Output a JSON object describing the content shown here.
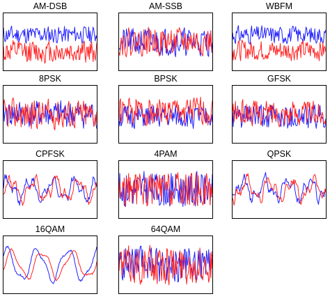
{
  "colors": {
    "in_phase": "#1f1fff",
    "quadrature": "#ff2020",
    "frame": "#000000"
  },
  "chart_data": [
    {
      "type": "line",
      "title": "AM-DSB",
      "x": [
        0,
        127
      ],
      "ylim": [
        -1,
        1
      ],
      "series": [
        {
          "style": "noisy",
          "amplitude": 0.35,
          "offset": 0.25,
          "color": "#1f1fff",
          "seed": 11
        },
        {
          "style": "noisy",
          "amplitude": 0.45,
          "offset": -0.35,
          "color": "#ff2020",
          "seed": 12
        }
      ]
    },
    {
      "type": "line",
      "title": "AM-SSB",
      "x": [
        0,
        127
      ],
      "ylim": [
        -1,
        1
      ],
      "series": [
        {
          "style": "noisy",
          "amplitude": 0.55,
          "offset": 0.0,
          "color": "#1f1fff",
          "seed": 21
        },
        {
          "style": "noisy",
          "amplitude": 0.55,
          "offset": 0.0,
          "color": "#ff2020",
          "seed": 22
        }
      ]
    },
    {
      "type": "line",
      "title": "WBFM",
      "x": [
        0,
        127
      ],
      "ylim": [
        -1,
        1
      ],
      "series": [
        {
          "style": "noisy",
          "amplitude": 0.35,
          "offset": 0.25,
          "color": "#1f1fff",
          "seed": 31
        },
        {
          "style": "noisy",
          "amplitude": 0.4,
          "offset": -0.3,
          "color": "#ff2020",
          "seed": 32
        }
      ]
    },
    {
      "type": "line",
      "title": "8PSK",
      "x": [
        0,
        127
      ],
      "ylim": [
        -1,
        1
      ],
      "series": [
        {
          "style": "noisy",
          "amplitude": 0.55,
          "offset": 0.0,
          "color": "#1f1fff",
          "seed": 41
        },
        {
          "style": "noisy",
          "amplitude": 0.6,
          "offset": 0.0,
          "color": "#ff2020",
          "seed": 42
        }
      ]
    },
    {
      "type": "line",
      "title": "BPSK",
      "x": [
        0,
        127
      ],
      "ylim": [
        -1,
        1
      ],
      "series": [
        {
          "style": "noisy",
          "amplitude": 0.45,
          "offset": -0.1,
          "color": "#1f1fff",
          "seed": 51
        },
        {
          "style": "noisy",
          "amplitude": 0.55,
          "offset": 0.1,
          "color": "#ff2020",
          "seed": 52
        }
      ]
    },
    {
      "type": "line",
      "title": "GFSK",
      "x": [
        0,
        127
      ],
      "ylim": [
        -1,
        1
      ],
      "series": [
        {
          "style": "noisy",
          "amplitude": 0.5,
          "offset": -0.1,
          "color": "#1f1fff",
          "seed": 61
        },
        {
          "style": "noisy",
          "amplitude": 0.5,
          "offset": 0.05,
          "color": "#ff2020",
          "seed": 62
        }
      ]
    },
    {
      "type": "line",
      "title": "CPFSK",
      "x": [
        0,
        127
      ],
      "ylim": [
        -1,
        1
      ],
      "series": [
        {
          "style": "smooth",
          "amplitude": 0.55,
          "offset": 0.0,
          "color": "#1f1fff",
          "seed": 71
        },
        {
          "style": "smooth",
          "amplitude": 0.55,
          "offset": 0.0,
          "color": "#ff2020",
          "seed": 72
        }
      ]
    },
    {
      "type": "line",
      "title": "4PAM",
      "x": [
        0,
        127
      ],
      "ylim": [
        -1,
        1
      ],
      "series": [
        {
          "style": "noisy",
          "amplitude": 0.7,
          "offset": 0.0,
          "color": "#1f1fff",
          "seed": 81
        },
        {
          "style": "noisy",
          "amplitude": 0.7,
          "offset": 0.0,
          "color": "#ff2020",
          "seed": 82
        }
      ]
    },
    {
      "type": "line",
      "title": "QPSK",
      "x": [
        0,
        127
      ],
      "ylim": [
        -1,
        1
      ],
      "series": [
        {
          "style": "smooth",
          "amplitude": 0.55,
          "offset": 0.0,
          "color": "#1f1fff",
          "seed": 91
        },
        {
          "style": "smooth",
          "amplitude": 0.55,
          "offset": 0.0,
          "color": "#ff2020",
          "seed": 92
        }
      ]
    },
    {
      "type": "line",
      "title": "16QAM",
      "x": [
        0,
        127
      ],
      "ylim": [
        -1,
        1
      ],
      "series": [
        {
          "style": "wave",
          "amplitude": 0.65,
          "offset": 0.0,
          "color": "#1f1fff",
          "seed": 101
        },
        {
          "style": "wave",
          "amplitude": 0.55,
          "offset": 0.0,
          "color": "#ff2020",
          "seed": 102
        }
      ]
    },
    {
      "type": "line",
      "title": "64QAM",
      "x": [
        0,
        127
      ],
      "ylim": [
        -1,
        1
      ],
      "series": [
        {
          "style": "noisy",
          "amplitude": 0.7,
          "offset": 0.0,
          "color": "#1f1fff",
          "seed": 111
        },
        {
          "style": "noisy",
          "amplitude": 0.75,
          "offset": 0.0,
          "color": "#ff2020",
          "seed": 112
        }
      ]
    }
  ]
}
